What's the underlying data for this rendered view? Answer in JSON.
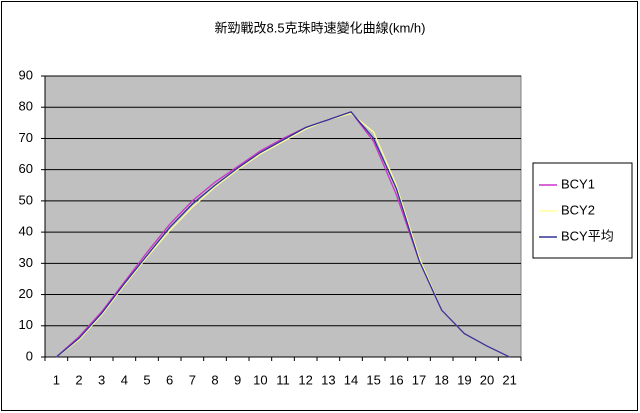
{
  "chart_data": {
    "type": "line",
    "title": "新勁戰改8.5克珠時速變化曲線(km/h)",
    "categories": [
      "1",
      "2",
      "3",
      "4",
      "5",
      "6",
      "7",
      "8",
      "9",
      "10",
      "11",
      "12",
      "13",
      "14",
      "15",
      "16",
      "17",
      "18",
      "19",
      "20",
      "21"
    ],
    "series": [
      {
        "name": "BCY1",
        "color": "#cc33cc",
        "values": [
          0,
          6.5,
          14.5,
          24,
          33.5,
          42.5,
          50,
          56,
          61,
          66,
          70,
          73.5,
          76,
          78.5,
          69,
          52,
          31,
          15,
          7.5,
          3.5,
          0
        ]
      },
      {
        "name": "BCY2",
        "color": "#ffff99",
        "values": [
          0,
          5.5,
          13.5,
          23,
          32,
          40.5,
          48,
          54.5,
          60,
          65,
          69,
          73,
          76,
          78,
          72,
          55,
          32,
          15,
          7.5,
          3.5,
          0
        ]
      },
      {
        "name": "BCY平均",
        "color": "#333399",
        "values": [
          0,
          6,
          14,
          23.5,
          32.5,
          41.5,
          49,
          55,
          60.5,
          65.5,
          69.5,
          73.5,
          76,
          78.5,
          70,
          54,
          31,
          15,
          7.5,
          3.5,
          0
        ]
      }
    ],
    "ylim": [
      0,
      90
    ],
    "yticks": [
      0,
      10,
      20,
      30,
      40,
      50,
      60,
      70,
      80,
      90
    ],
    "grid": true,
    "plot_background": "#c0c0c0",
    "legend": "right"
  }
}
